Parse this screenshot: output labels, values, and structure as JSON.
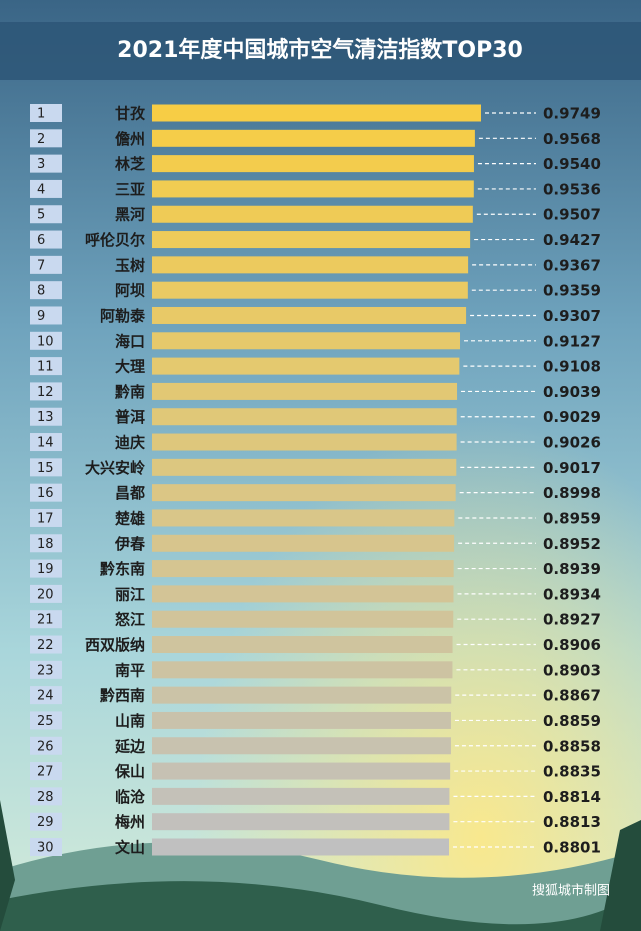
{
  "chart_data": {
    "type": "hbar",
    "title": "2021年度中国城市空气清洁指数TOP30",
    "source": "搜狐城市制图",
    "ranks": [
      1,
      2,
      3,
      4,
      5,
      6,
      7,
      8,
      9,
      10,
      11,
      12,
      13,
      14,
      15,
      16,
      17,
      18,
      19,
      20,
      21,
      22,
      23,
      24,
      25,
      26,
      27,
      28,
      29,
      30
    ],
    "categories": [
      "甘孜",
      "儋州",
      "林芝",
      "三亚",
      "黑河",
      "呼伦贝尔",
      "玉树",
      "阿坝",
      "阿勒泰",
      "海口",
      "大理",
      "黔南",
      "普洱",
      "迪庆",
      "大兴安岭",
      "昌都",
      "楚雄",
      "伊春",
      "黔东南",
      "丽江",
      "怒江",
      "西双版纳",
      "南平",
      "黔西南",
      "山南",
      "延边",
      "保山",
      "临沧",
      "梅州",
      "文山"
    ],
    "values": [
      0.9749,
      0.9568,
      0.954,
      0.9536,
      0.9507,
      0.9427,
      0.9367,
      0.9359,
      0.9307,
      0.9127,
      0.9108,
      0.9039,
      0.9029,
      0.9026,
      0.9017,
      0.8998,
      0.8959,
      0.8952,
      0.8939,
      0.8934,
      0.8927,
      0.8906,
      0.8903,
      0.8867,
      0.8859,
      0.8858,
      0.8835,
      0.8814,
      0.8813,
      0.8801
    ],
    "value_labels": [
      "0.9749",
      "0.9568",
      "0.9540",
      "0.9536",
      "0.9507",
      "0.9427",
      "0.9367",
      "0.9359",
      "0.9307",
      "0.9127",
      "0.9108",
      "0.9039",
      "0.9029",
      "0.9026",
      "0.9017",
      "0.8998",
      "0.8959",
      "0.8952",
      "0.8939",
      "0.8934",
      "0.8927",
      "0.8906",
      "0.8903",
      "0.8867",
      "0.8859",
      "0.8858",
      "0.8835",
      "0.8814",
      "0.8813",
      "0.8801"
    ],
    "colors": [
      "#f7cd45",
      "#c0c0c0"
    ]
  }
}
